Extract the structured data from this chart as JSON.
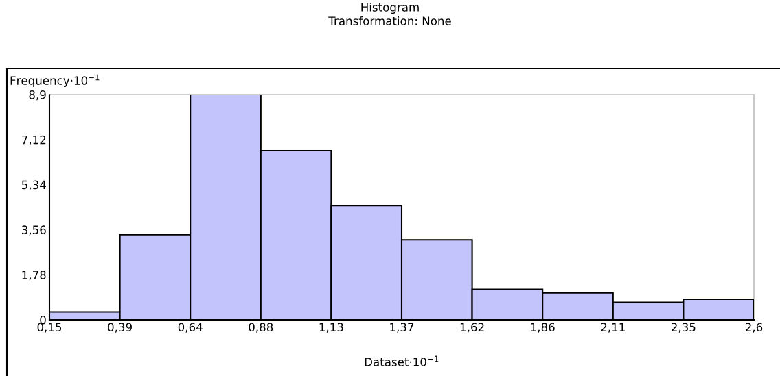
{
  "chart_data": {
    "type": "histogram",
    "title": "Histogram",
    "subtitle": "Transformation: None",
    "xlabel": "Dataset·10$^{−1}$",
    "ylabel": "Frequency·10$^{−1}$",
    "bins": [
      0.15,
      0.395,
      0.64,
      0.885,
      1.13,
      1.375,
      1.62,
      1.865,
      2.11,
      2.355,
      2.6
    ],
    "values": [
      0.31,
      3.36,
      8.9,
      6.68,
      4.51,
      3.16,
      1.2,
      1.06,
      0.69,
      0.81
    ],
    "color": "#c4c4fc",
    "xlim": [
      0.15,
      2.6
    ],
    "xticks": [
      {
        "value": 0.15,
        "label": "0,15"
      },
      {
        "value": 0.395,
        "label": "0,39"
      },
      {
        "value": 0.64,
        "label": "0,64"
      },
      {
        "value": 0.885,
        "label": "0,88"
      },
      {
        "value": 1.13,
        "label": "1,13"
      },
      {
        "value": 1.375,
        "label": "1,37"
      },
      {
        "value": 1.62,
        "label": "1,62"
      },
      {
        "value": 1.865,
        "label": "1,86"
      },
      {
        "value": 2.11,
        "label": "2,11"
      },
      {
        "value": 2.355,
        "label": "2,35"
      },
      {
        "value": 2.6,
        "label": "2,6"
      }
    ],
    "ylim": [
      0,
      8.9
    ],
    "yticks": [
      0,
      {
        "value": 1.78,
        "label": "1,78"
      },
      {
        "value": 3.56,
        "label": "3,56"
      },
      {
        "value": 5.34,
        "label": "5,34"
      },
      {
        "value": 7.12,
        "label": "7,12"
      },
      {
        "value": 8.9,
        "label": "8,9"
      }
    ],
    "grid": false,
    "legend": false
  }
}
